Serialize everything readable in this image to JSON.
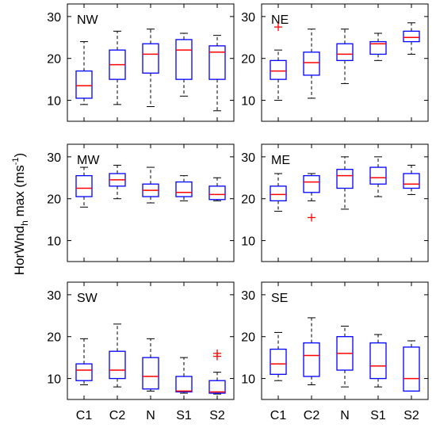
{
  "chart_data": {
    "type": "boxplot",
    "layout": "3x2 grid of panels",
    "ylabel_main": "HorWnd",
    "ylabel_sub": "h",
    "ylabel_rest": " max (ms",
    "ylabel_sup": "-1",
    "ylabel_end": ")",
    "ylim": [
      5,
      33
    ],
    "yticks": [
      "10",
      "20",
      "30"
    ],
    "categories": [
      "C1",
      "C2",
      "N",
      "S1",
      "S2"
    ],
    "colors": {
      "box": "#0000ff",
      "median": "#ff0000",
      "whisker": "#000000",
      "outlier": "#ff0000"
    },
    "panels": [
      {
        "label": "NW",
        "boxes": [
          {
            "min": 9,
            "q1": 10.5,
            "median": 13.5,
            "q3": 17,
            "max": 24,
            "outliers": []
          },
          {
            "min": 9,
            "q1": 15,
            "median": 18.5,
            "q3": 22,
            "max": 26.5,
            "outliers": []
          },
          {
            "min": 8.5,
            "q1": 16.5,
            "median": 21,
            "q3": 23.5,
            "max": 27,
            "outliers": []
          },
          {
            "min": 11,
            "q1": 15,
            "median": 22,
            "q3": 24.5,
            "max": 26,
            "outliers": []
          },
          {
            "min": 7.5,
            "q1": 15,
            "median": 21.5,
            "q3": 23,
            "max": 25.5,
            "outliers": []
          }
        ]
      },
      {
        "label": "NE",
        "boxes": [
          {
            "min": 10,
            "q1": 15,
            "median": 17,
            "q3": 19.5,
            "max": 22,
            "outliers": [
              27.5
            ]
          },
          {
            "min": 10.5,
            "q1": 16,
            "median": 19,
            "q3": 21.5,
            "max": 27,
            "outliers": []
          },
          {
            "min": 14,
            "q1": 19.5,
            "median": 21,
            "q3": 23.5,
            "max": 27,
            "outliers": []
          },
          {
            "min": 19.5,
            "q1": 21,
            "median": 23.5,
            "q3": 24,
            "max": 26,
            "outliers": []
          },
          {
            "min": 21,
            "q1": 24,
            "median": 25,
            "q3": 26.5,
            "max": 28.5,
            "outliers": []
          }
        ]
      },
      {
        "label": "MW",
        "boxes": [
          {
            "min": 18,
            "q1": 20.5,
            "median": 22.5,
            "q3": 25.5,
            "max": 27.5,
            "outliers": []
          },
          {
            "min": 20,
            "q1": 23,
            "median": 24.5,
            "q3": 26,
            "max": 28,
            "outliers": []
          },
          {
            "min": 19,
            "q1": 20.5,
            "median": 22,
            "q3": 23.5,
            "max": 27.5,
            "outliers": []
          },
          {
            "min": 19.5,
            "q1": 20.5,
            "median": 21.5,
            "q3": 24,
            "max": 25.5,
            "outliers": []
          },
          {
            "min": 19.5,
            "q1": 19.8,
            "median": 21,
            "q3": 23,
            "max": 25,
            "outliers": []
          }
        ]
      },
      {
        "label": "ME",
        "boxes": [
          {
            "min": 17,
            "q1": 19.5,
            "median": 21,
            "q3": 23,
            "max": 26,
            "outliers": []
          },
          {
            "min": 19.5,
            "q1": 21.5,
            "median": 24,
            "q3": 25.5,
            "max": 26,
            "outliers": [
              15.5
            ]
          },
          {
            "min": 17.5,
            "q1": 22.5,
            "median": 25.5,
            "q3": 27,
            "max": 30,
            "outliers": []
          },
          {
            "min": 20.5,
            "q1": 23.5,
            "median": 25,
            "q3": 27.5,
            "max": 30,
            "outliers": []
          },
          {
            "min": 21,
            "q1": 22.5,
            "median": 23.5,
            "q3": 26,
            "max": 28,
            "outliers": []
          }
        ]
      },
      {
        "label": "SW",
        "boxes": [
          {
            "min": 8.5,
            "q1": 9.5,
            "median": 12,
            "q3": 13.5,
            "max": 19.5,
            "outliers": []
          },
          {
            "min": 8,
            "q1": 10,
            "median": 12,
            "q3": 16.5,
            "max": 23,
            "outliers": []
          },
          {
            "min": 7,
            "q1": 7.5,
            "median": 10.5,
            "q3": 15,
            "max": 19.5,
            "outliers": []
          },
          {
            "min": 6.5,
            "q1": 6.8,
            "median": 7,
            "q3": 10.5,
            "max": 15,
            "outliers": []
          },
          {
            "min": 6.3,
            "q1": 6.5,
            "median": 6.8,
            "q3": 9.5,
            "max": 11.5,
            "outliers": [
              15.3,
              16
            ]
          }
        ]
      },
      {
        "label": "SE",
        "boxes": [
          {
            "min": 9.5,
            "q1": 11,
            "median": 13.5,
            "q3": 17,
            "max": 21,
            "outliers": []
          },
          {
            "min": 8.5,
            "q1": 10.5,
            "median": 15.5,
            "q3": 18.5,
            "max": 24.5,
            "outliers": []
          },
          {
            "min": 8,
            "q1": 12,
            "median": 16,
            "q3": 20,
            "max": 22.5,
            "outliers": []
          },
          {
            "min": 8,
            "q1": 10,
            "median": 13,
            "q3": 18.5,
            "max": 20.5,
            "outliers": []
          },
          {
            "min": 7,
            "q1": 7,
            "median": 10,
            "q3": 17.5,
            "max": 19,
            "outliers": []
          }
        ]
      }
    ]
  }
}
